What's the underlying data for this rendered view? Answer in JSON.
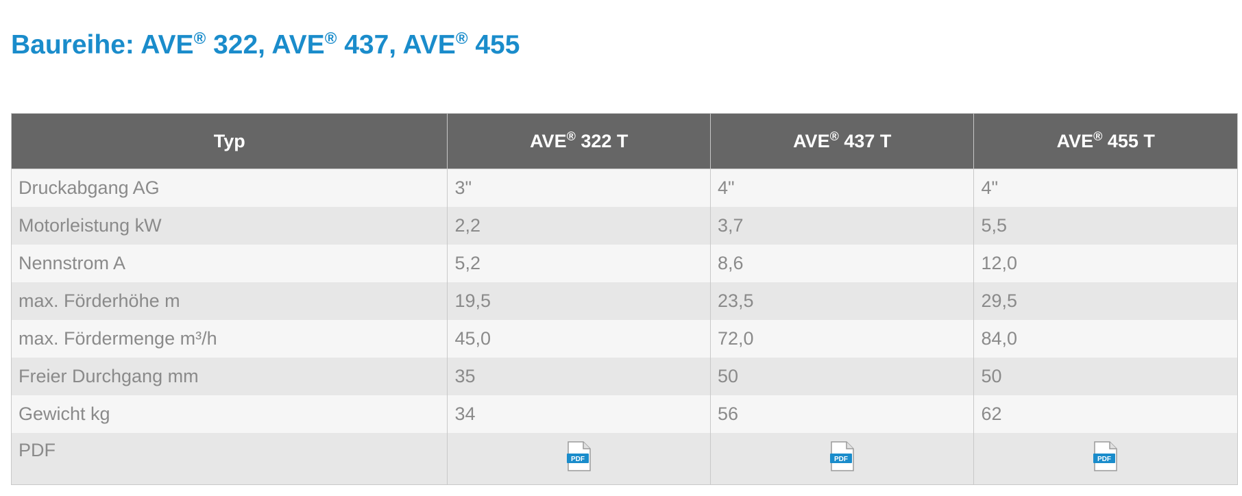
{
  "title": {
    "prefix": "Baureihe: AVE",
    "parts": [
      {
        "reg": "®",
        "after": " 322, AVE"
      },
      {
        "reg": "®",
        "after": " 437, AVE"
      },
      {
        "reg": "®",
        "after": " 455"
      }
    ]
  },
  "table": {
    "header_label": "Typ",
    "models": [
      {
        "name": "AVE",
        "reg": "®",
        "suffix": " 322 T"
      },
      {
        "name": "AVE",
        "reg": "®",
        "suffix": " 437 T"
      },
      {
        "name": "AVE",
        "reg": "®",
        "suffix": " 455 T"
      }
    ],
    "rows": [
      {
        "label": "Druckabgang AG",
        "values": [
          "3\"",
          "4\"",
          "4\""
        ]
      },
      {
        "label": "Motorleistung kW",
        "values": [
          "2,2",
          "3,7",
          "5,5"
        ]
      },
      {
        "label": "Nennstrom A",
        "values": [
          "5,2",
          "8,6",
          "12,0"
        ]
      },
      {
        "label": "max. Förderhöhe m",
        "values": [
          "19,5",
          "23,5",
          "29,5"
        ]
      },
      {
        "label": "max. Fördermenge m³/h",
        "values": [
          "45,0",
          "72,0",
          "84,0"
        ]
      },
      {
        "label": "Freier Durchgang mm",
        "values": [
          "35",
          "50",
          "50"
        ]
      },
      {
        "label": "Gewicht kg",
        "values": [
          "34",
          "56",
          "62"
        ]
      }
    ],
    "pdf_row": {
      "label": "PDF",
      "icon": "pdf-file-icon",
      "icon_text": "PDF",
      "icon_color": "#1a8ccb"
    }
  }
}
